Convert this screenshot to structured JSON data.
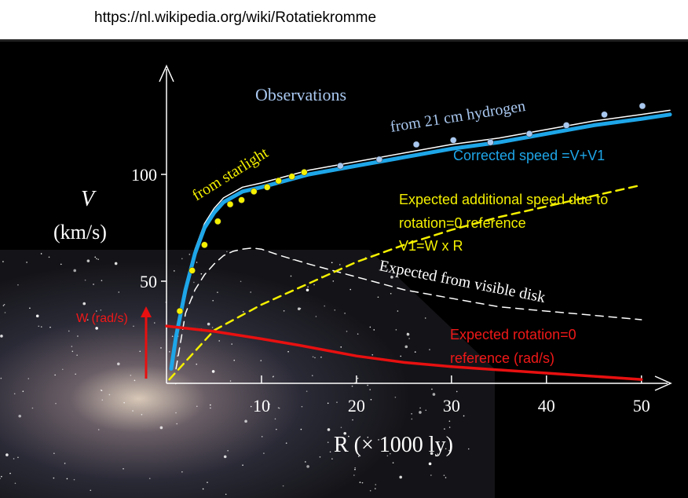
{
  "url": "https://nl.wikipedia.org/wiki/Rotatiekromme",
  "chart_data": {
    "type": "line",
    "y_label": "V",
    "y_unit": "(km/s)",
    "x_label": "R  (× 1000 ly)",
    "xlim": [
      0,
      53
    ],
    "ylim": [
      0,
      150
    ],
    "xticks": [
      10,
      20,
      30,
      40,
      50
    ],
    "yticks": [
      50,
      100
    ],
    "annotations": [
      "Observations",
      "from  starlight",
      "from 21 cm hydrogen",
      "Corrected speed =V+V1",
      "Expected additional speed due to",
      "rotation=0 reference",
      "V1=W x R",
      "Expected from visible disk",
      "Expected rotation=0",
      "reference (rad/s)",
      "W (rad/s)"
    ],
    "series": [
      {
        "color": "#ffffff",
        "style": "solid",
        "width": 1.5,
        "x": [
          0.5,
          1,
          2,
          3,
          4,
          5,
          6,
          8,
          10,
          15,
          20,
          25,
          30,
          35,
          40,
          45,
          50,
          53
        ],
        "values": [
          11,
          26,
          48,
          65,
          77,
          84,
          89,
          94,
          96,
          102,
          106,
          110,
          114,
          117,
          121,
          125,
          128,
          130
        ]
      },
      {
        "color": "#1ea6e8",
        "style": "solid",
        "width": 5,
        "x": [
          0.5,
          1,
          2,
          3,
          4,
          5,
          6,
          8,
          10,
          15,
          20,
          25,
          30,
          35,
          40,
          45,
          50,
          53
        ],
        "values": [
          9,
          24,
          46,
          63,
          75,
          82,
          87,
          92,
          94,
          100,
          104,
          108,
          112,
          115,
          119,
          123,
          126,
          128
        ]
      },
      {
        "color": "#ffffff",
        "style": "dashed",
        "width": 1.5,
        "x": [
          1,
          2,
          3,
          4,
          5,
          6,
          7,
          8,
          9,
          10,
          12,
          15,
          20,
          25,
          30,
          35,
          40,
          45,
          50
        ],
        "values": [
          9,
          35,
          46,
          53,
          58,
          62,
          64,
          65,
          65.5,
          65,
          62,
          58,
          52,
          46,
          42,
          38,
          36,
          34,
          32
        ]
      },
      {
        "color": "#f4f000",
        "style": "dashed",
        "width": 2.5,
        "x": [
          0.3,
          5,
          10,
          15,
          20,
          25,
          30,
          35,
          40,
          45,
          50
        ],
        "values": [
          4,
          27,
          39,
          49,
          59,
          67,
          74,
          80,
          85,
          90,
          95
        ]
      },
      {
        "color": "#e81010",
        "style": "solid",
        "width": 3.5,
        "x": [
          0,
          5,
          10,
          14,
          20,
          25,
          30,
          40,
          50
        ],
        "values": [
          29,
          26.5,
          23,
          20,
          15,
          12,
          10,
          7,
          4
        ]
      },
      {
        "color": "#f4f000",
        "style": "points",
        "x": [
          1.4,
          2.7,
          4.0,
          5.4,
          6.7,
          7.9,
          9.2,
          10.6,
          11.8,
          13.2,
          14.5
        ],
        "values": [
          36,
          55,
          67,
          78,
          86,
          88,
          92,
          94,
          97,
          99,
          101
        ]
      },
      {
        "color": "#a9c8f0",
        "style": "points",
        "x": [
          18.3,
          22.4,
          26.3,
          30.2,
          34.1,
          38.2,
          42.1,
          46.1,
          50.1
        ],
        "values": [
          104,
          107,
          114,
          116,
          115,
          119,
          123,
          128,
          132
        ]
      }
    ]
  }
}
